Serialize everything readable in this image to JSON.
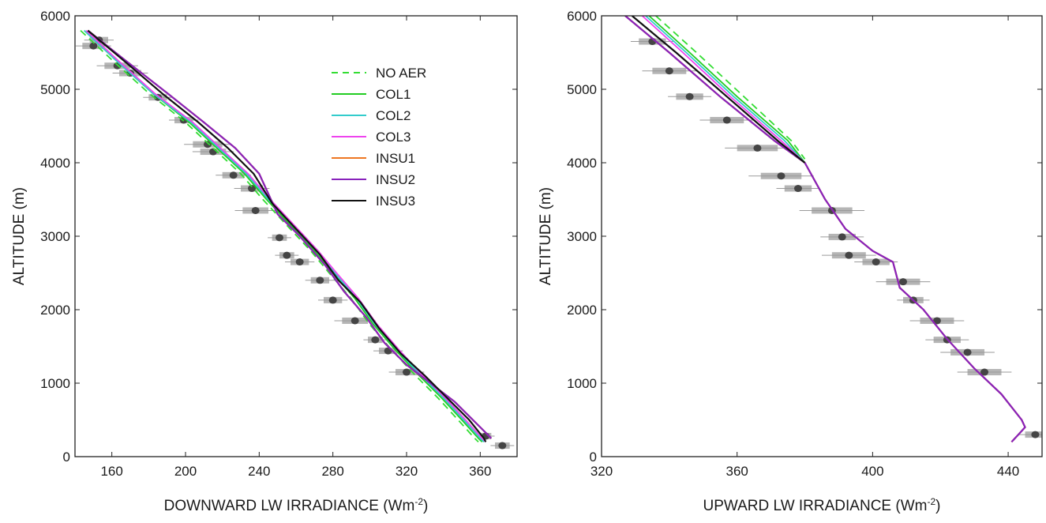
{
  "chart_data": [
    {
      "type": "line",
      "xlabel": "DOWNWARD LW IRRADIANCE",
      "xlabel_unit_base": "(Wm",
      "xlabel_unit_sup": "-2",
      "xlabel_unit_close": ")",
      "ylabel": "ALTITUDE (m)",
      "xlim": [
        140,
        380
      ],
      "ylim": [
        0,
        6000
      ],
      "xticks": [
        160,
        200,
        240,
        280,
        320,
        360
      ],
      "yticks": [
        0,
        1000,
        2000,
        3000,
        4000,
        5000,
        6000
      ],
      "legend_position": "top-right",
      "series": [
        {
          "name": "NO AER",
          "color": "#33dd33",
          "dash": true,
          "points": [
            [
              143,
              5800
            ],
            [
              160,
              5400
            ],
            [
              180,
              4950
            ],
            [
              200,
              4550
            ],
            [
              215,
              4200
            ],
            [
              230,
              3850
            ],
            [
              242,
              3500
            ],
            [
              255,
              3150
            ],
            [
              268,
              2800
            ],
            [
              278,
              2500
            ],
            [
              290,
              2150
            ],
            [
              300,
              1800
            ],
            [
              312,
              1450
            ],
            [
              325,
              1100
            ],
            [
              337,
              800
            ],
            [
              348,
              500
            ],
            [
              357,
              250
            ],
            [
              359,
              200
            ]
          ]
        },
        {
          "name": "COL1",
          "color": "#22cc22",
          "dash": false,
          "points": [
            [
              145,
              5800
            ],
            [
              162,
              5400
            ],
            [
              182,
              4950
            ],
            [
              202,
              4550
            ],
            [
              217,
              4200
            ],
            [
              232,
              3850
            ],
            [
              244,
              3500
            ],
            [
              257,
              3150
            ],
            [
              270,
              2800
            ],
            [
              280,
              2500
            ],
            [
              292,
              2150
            ],
            [
              302,
              1800
            ],
            [
              314,
              1450
            ],
            [
              327,
              1100
            ],
            [
              339,
              800
            ],
            [
              350,
              500
            ],
            [
              359,
              250
            ],
            [
              361,
              200
            ]
          ]
        },
        {
          "name": "COL2",
          "color": "#33cccc",
          "dash": false,
          "points": [
            [
              145,
              5800
            ],
            [
              162,
              5400
            ],
            [
              182,
              4950
            ],
            [
              203,
              4550
            ],
            [
              218,
              4200
            ],
            [
              233,
              3850
            ],
            [
              245,
              3500
            ],
            [
              258,
              3150
            ],
            [
              271,
              2800
            ],
            [
              281,
              2500
            ],
            [
              293,
              2150
            ],
            [
              303,
              1800
            ],
            [
              315,
              1450
            ],
            [
              328,
              1100
            ],
            [
              340,
              800
            ],
            [
              351,
              500
            ],
            [
              360,
              250
            ],
            [
              362,
              200
            ]
          ]
        },
        {
          "name": "COL3",
          "color": "#ee44ee",
          "dash": false,
          "points": [
            [
              146,
              5800
            ],
            [
              163,
              5400
            ],
            [
              183,
              4950
            ],
            [
              204,
              4550
            ],
            [
              219,
              4200
            ],
            [
              234,
              3850
            ],
            [
              246,
              3500
            ],
            [
              259,
              3150
            ],
            [
              272,
              2800
            ],
            [
              282,
              2500
            ],
            [
              294,
              2150
            ],
            [
              304,
              1800
            ],
            [
              316,
              1450
            ],
            [
              329,
              1100
            ],
            [
              341,
              800
            ],
            [
              352,
              500
            ],
            [
              361,
              250
            ],
            [
              363,
              200
            ]
          ]
        },
        {
          "name": "INSU1",
          "color": "#ee7722",
          "dash": false,
          "points": [
            [
              147,
              5800
            ],
            [
              167,
              5400
            ],
            [
              190,
              4950
            ],
            [
              210,
              4550
            ],
            [
              227,
              4200
            ],
            [
              240,
              3850
            ],
            [
              250,
              3300
            ],
            [
              262,
              3000
            ],
            [
              276,
              2600
            ],
            [
              286,
              2250
            ],
            [
              298,
              1900
            ],
            [
              308,
              1550
            ],
            [
              320,
              1250
            ],
            [
              333,
              1000
            ],
            [
              346,
              750
            ],
            [
              356,
              500
            ],
            [
              364,
              300
            ],
            [
              366,
              250
            ]
          ]
        },
        {
          "name": "INSU2",
          "color": "#8822bb",
          "dash": false,
          "points": [
            [
              147,
              5800
            ],
            [
              167,
              5400
            ],
            [
              190,
              4950
            ],
            [
              210,
              4550
            ],
            [
              227,
              4200
            ],
            [
              240,
              3850
            ],
            [
              250,
              3300
            ],
            [
              262,
              3000
            ],
            [
              276,
              2600
            ],
            [
              286,
              2250
            ],
            [
              298,
              1900
            ],
            [
              308,
              1550
            ],
            [
              320,
              1250
            ],
            [
              333,
              1000
            ],
            [
              346,
              750
            ],
            [
              356,
              500
            ],
            [
              364,
              300
            ],
            [
              366,
              250
            ]
          ]
        },
        {
          "name": "INSU3",
          "color": "#111111",
          "dash": false,
          "points": [
            [
              147,
              5800
            ],
            [
              166,
              5400
            ],
            [
              187,
              4950
            ],
            [
              207,
              4550
            ],
            [
              223,
              4200
            ],
            [
              237,
              3850
            ],
            [
              247,
              3450
            ],
            [
              260,
              3100
            ],
            [
              273,
              2750
            ],
            [
              283,
              2400
            ],
            [
              295,
              2100
            ],
            [
              305,
              1750
            ],
            [
              317,
              1400
            ],
            [
              330,
              1100
            ],
            [
              342,
              800
            ],
            [
              354,
              500
            ],
            [
              362,
              250
            ],
            [
              363,
              200
            ]
          ]
        }
      ],
      "observations": [
        {
          "x": 153,
          "y": 5670,
          "err": 5
        },
        {
          "x": 150,
          "y": 5590,
          "err": 6
        },
        {
          "x": 163,
          "y": 5320,
          "err": 7
        },
        {
          "x": 170,
          "y": 5220,
          "err": 6
        },
        {
          "x": 185,
          "y": 4890,
          "err": 5
        },
        {
          "x": 199,
          "y": 4580,
          "err": 5
        },
        {
          "x": 212,
          "y": 4250,
          "err": 8
        },
        {
          "x": 215,
          "y": 4150,
          "err": 7
        },
        {
          "x": 226,
          "y": 3830,
          "err": 6
        },
        {
          "x": 236,
          "y": 3650,
          "err": 6
        },
        {
          "x": 238,
          "y": 3350,
          "err": 7
        },
        {
          "x": 251,
          "y": 2980,
          "err": 4
        },
        {
          "x": 255,
          "y": 2740,
          "err": 4
        },
        {
          "x": 262,
          "y": 2650,
          "err": 5
        },
        {
          "x": 273,
          "y": 2400,
          "err": 5
        },
        {
          "x": 280,
          "y": 2130,
          "err": 5
        },
        {
          "x": 292,
          "y": 1850,
          "err": 7
        },
        {
          "x": 303,
          "y": 1590,
          "err": 4
        },
        {
          "x": 310,
          "y": 1440,
          "err": 5
        },
        {
          "x": 320,
          "y": 1150,
          "err": 6
        },
        {
          "x": 363,
          "y": 280,
          "err": 3
        },
        {
          "x": 372,
          "y": 150,
          "err": 4
        }
      ]
    },
    {
      "type": "line",
      "xlabel": "UPWARD LW IRRADIANCE",
      "xlabel_unit_base": "(Wm",
      "xlabel_unit_sup": "-2",
      "xlabel_unit_close": ")",
      "ylabel": "ALTITUDE (m)",
      "xlim": [
        320,
        450
      ],
      "ylim": [
        0,
        6000
      ],
      "xticks": [
        320,
        360,
        400,
        440
      ],
      "yticks": [
        0,
        1000,
        2000,
        3000,
        4000,
        5000,
        6000
      ],
      "series": [
        {
          "name": "NO AER",
          "color": "#33dd33",
          "dash": true,
          "points": [
            [
              336,
              6000
            ],
            [
              348,
              5500
            ],
            [
              362,
              4900
            ],
            [
              376,
              4300
            ],
            [
              380,
              4050
            ]
          ]
        },
        {
          "name": "COL1",
          "color": "#22cc22",
          "dash": false,
          "points": [
            [
              334,
              6000
            ],
            [
              346,
              5500
            ],
            [
              360,
              4900
            ],
            [
              375,
              4300
            ],
            [
              380,
              4000
            ]
          ]
        },
        {
          "name": "COL2",
          "color": "#33cccc",
          "dash": false,
          "points": [
            [
              333,
              6000
            ],
            [
              345,
              5500
            ],
            [
              359,
              4900
            ],
            [
              374,
              4300
            ],
            [
              380,
              4000
            ]
          ]
        },
        {
          "name": "COL3",
          "color": "#ee44ee",
          "dash": false,
          "points": [
            [
              332,
              6000
            ],
            [
              344,
              5500
            ],
            [
              358,
              4900
            ],
            [
              373,
              4300
            ],
            [
              380,
              4000
            ]
          ]
        },
        {
          "name": "INSU1",
          "color": "#ee7722",
          "dash": false,
          "points": [
            [
              327,
              6000
            ],
            [
              340,
              5500
            ],
            [
              355,
              4900
            ],
            [
              371,
              4300
            ],
            [
              380,
              4000
            ],
            [
              386,
              3500
            ],
            [
              392,
              3100
            ],
            [
              400,
              2800
            ],
            [
              406,
              2650
            ],
            [
              408,
              2300
            ],
            [
              415,
              2000
            ],
            [
              422,
              1600
            ],
            [
              430,
              1200
            ],
            [
              438,
              850
            ],
            [
              444,
              500
            ],
            [
              445,
              400
            ],
            [
              443,
              300
            ],
            [
              441,
              200
            ]
          ]
        },
        {
          "name": "INSU2",
          "color": "#8822bb",
          "dash": false,
          "points": [
            [
              327,
              6000
            ],
            [
              340,
              5500
            ],
            [
              355,
              4900
            ],
            [
              371,
              4300
            ],
            [
              380,
              4000
            ],
            [
              386,
              3500
            ],
            [
              392,
              3100
            ],
            [
              400,
              2800
            ],
            [
              406,
              2650
            ],
            [
              408,
              2300
            ],
            [
              415,
              2000
            ],
            [
              422,
              1600
            ],
            [
              430,
              1200
            ],
            [
              438,
              850
            ],
            [
              444,
              500
            ],
            [
              445,
              400
            ],
            [
              443,
              300
            ],
            [
              441,
              200
            ]
          ]
        },
        {
          "name": "INSU3",
          "color": "#111111",
          "dash": false,
          "points": [
            [
              329,
              6000
            ],
            [
              342,
              5500
            ],
            [
              357,
              4900
            ],
            [
              372,
              4300
            ],
            [
              380,
              4000
            ]
          ]
        }
      ],
      "observations": [
        {
          "x": 335,
          "y": 5650,
          "err": 4
        },
        {
          "x": 340,
          "y": 5250,
          "err": 5
        },
        {
          "x": 346,
          "y": 4900,
          "err": 4
        },
        {
          "x": 357,
          "y": 4580,
          "err": 5
        },
        {
          "x": 366,
          "y": 4200,
          "err": 6
        },
        {
          "x": 373,
          "y": 3820,
          "err": 6
        },
        {
          "x": 378,
          "y": 3650,
          "err": 4
        },
        {
          "x": 388,
          "y": 3350,
          "err": 6
        },
        {
          "x": 391,
          "y": 2990,
          "err": 4
        },
        {
          "x": 393,
          "y": 2740,
          "err": 5
        },
        {
          "x": 401,
          "y": 2650,
          "err": 4
        },
        {
          "x": 409,
          "y": 2380,
          "err": 5
        },
        {
          "x": 412,
          "y": 2130,
          "err": 3
        },
        {
          "x": 419,
          "y": 1850,
          "err": 5
        },
        {
          "x": 422,
          "y": 1590,
          "err": 4
        },
        {
          "x": 428,
          "y": 1420,
          "err": 5
        },
        {
          "x": 433,
          "y": 1150,
          "err": 5
        },
        {
          "x": 448,
          "y": 300,
          "err": 3
        }
      ]
    }
  ]
}
